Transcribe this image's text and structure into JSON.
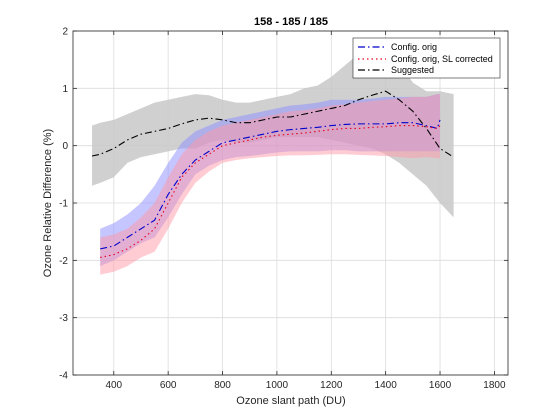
{
  "chart_data": {
    "type": "line",
    "title": "158 - 185 / 185",
    "xlabel": "Ozone slant path (DU)",
    "ylabel": "Ozone Relative Difference (%)",
    "xlim": [
      250,
      1850
    ],
    "ylim": [
      -4,
      2
    ],
    "xticks": [
      400,
      600,
      800,
      1000,
      1200,
      1400,
      1600,
      1800
    ],
    "yticks": [
      -4,
      -3,
      -2,
      -1,
      0,
      1,
      2
    ],
    "grid": true,
    "legend_position": "top-right",
    "series": [
      {
        "name": "Config. orig",
        "color": "#0000cc",
        "dash": "dashdot",
        "band_color": "#8c8cff",
        "x": [
          350,
          400,
          450,
          500,
          550,
          600,
          650,
          700,
          750,
          800,
          850,
          900,
          950,
          1000,
          1050,
          1100,
          1150,
          1200,
          1250,
          1300,
          1350,
          1400,
          1450,
          1500,
          1550,
          1590,
          1600
        ],
        "y": [
          -1.8,
          -1.75,
          -1.6,
          -1.45,
          -1.3,
          -0.85,
          -0.5,
          -0.25,
          -0.1,
          0.05,
          0.1,
          0.15,
          0.2,
          0.25,
          0.28,
          0.3,
          0.32,
          0.35,
          0.37,
          0.38,
          0.38,
          0.38,
          0.4,
          0.4,
          0.35,
          0.3,
          0.45
        ],
        "upper": [
          -1.45,
          -1.35,
          -1.2,
          -1.0,
          -0.7,
          -0.3,
          0.05,
          0.25,
          0.35,
          0.45,
          0.5,
          0.55,
          0.6,
          0.65,
          0.7,
          0.72,
          0.75,
          0.8,
          0.8,
          0.8,
          0.82,
          0.85,
          0.85,
          0.85,
          0.85,
          0.9,
          0.9
        ],
        "lower": [
          -2.1,
          -2.0,
          -1.85,
          -1.7,
          -1.6,
          -1.25,
          -0.85,
          -0.5,
          -0.35,
          -0.25,
          -0.2,
          -0.18,
          -0.15,
          -0.12,
          -0.1,
          -0.1,
          -0.1,
          -0.08,
          -0.08,
          -0.1,
          -0.1,
          -0.1,
          -0.1,
          -0.1,
          -0.1,
          -0.1,
          -0.1
        ]
      },
      {
        "name": "Config. orig, SL corrected",
        "color": "#e8001e",
        "dash": "dotted",
        "band_color": "#ff9aa8",
        "x": [
          350,
          400,
          450,
          500,
          550,
          600,
          650,
          700,
          750,
          800,
          850,
          900,
          950,
          1000,
          1050,
          1100,
          1150,
          1200,
          1250,
          1300,
          1350,
          1400,
          1450,
          1500,
          1550,
          1590,
          1600
        ],
        "y": [
          -1.95,
          -1.9,
          -1.8,
          -1.65,
          -1.45,
          -1.0,
          -0.55,
          -0.3,
          -0.15,
          0.0,
          0.05,
          0.1,
          0.15,
          0.18,
          0.2,
          0.22,
          0.25,
          0.28,
          0.3,
          0.3,
          0.32,
          0.33,
          0.35,
          0.35,
          0.33,
          0.3,
          0.35
        ],
        "upper": [
          -1.6,
          -1.55,
          -1.45,
          -1.25,
          -1.0,
          -0.55,
          -0.15,
          0.1,
          0.25,
          0.35,
          0.4,
          0.45,
          0.5,
          0.55,
          0.6,
          0.62,
          0.65,
          0.7,
          0.72,
          0.75,
          0.78,
          0.8,
          0.82,
          0.85,
          0.85,
          0.9,
          0.9
        ],
        "lower": [
          -2.25,
          -2.2,
          -2.1,
          -1.95,
          -1.85,
          -1.45,
          -1.0,
          -0.65,
          -0.45,
          -0.3,
          -0.25,
          -0.22,
          -0.2,
          -0.18,
          -0.17,
          -0.17,
          -0.16,
          -0.15,
          -0.15,
          -0.16,
          -0.17,
          -0.18,
          -0.2,
          -0.22,
          -0.2,
          -0.22,
          -0.22
        ]
      },
      {
        "name": "Suggested",
        "color": "#000000",
        "dash": "dashdot",
        "band_color": "#c8c8c8",
        "x": [
          320,
          350,
          400,
          450,
          500,
          550,
          600,
          650,
          700,
          750,
          800,
          850,
          900,
          950,
          1000,
          1050,
          1100,
          1150,
          1200,
          1250,
          1300,
          1350,
          1400,
          1450,
          1500,
          1550,
          1600,
          1650
        ],
        "y": [
          -0.18,
          -0.15,
          -0.05,
          0.1,
          0.2,
          0.25,
          0.3,
          0.38,
          0.45,
          0.48,
          0.45,
          0.4,
          0.4,
          0.45,
          0.5,
          0.5,
          0.55,
          0.6,
          0.65,
          0.7,
          0.8,
          0.88,
          0.95,
          0.8,
          0.6,
          0.3,
          -0.05,
          -0.2
        ],
        "upper": [
          0.35,
          0.4,
          0.45,
          0.55,
          0.65,
          0.75,
          0.8,
          0.85,
          0.9,
          0.88,
          0.8,
          0.75,
          0.75,
          0.8,
          0.85,
          0.9,
          1.0,
          1.05,
          1.2,
          1.4,
          1.6,
          1.7,
          1.85,
          1.45,
          1.1,
          0.95,
          0.95,
          0.9
        ],
        "lower": [
          -0.7,
          -0.65,
          -0.55,
          -0.3,
          -0.2,
          -0.15,
          -0.1,
          -0.05,
          -0.05,
          0.05,
          0.1,
          0.05,
          0.05,
          0.1,
          0.15,
          0.15,
          0.15,
          0.15,
          0.1,
          0.05,
          0.0,
          -0.05,
          -0.15,
          -0.3,
          -0.5,
          -0.7,
          -1.0,
          -1.25
        ]
      }
    ]
  }
}
